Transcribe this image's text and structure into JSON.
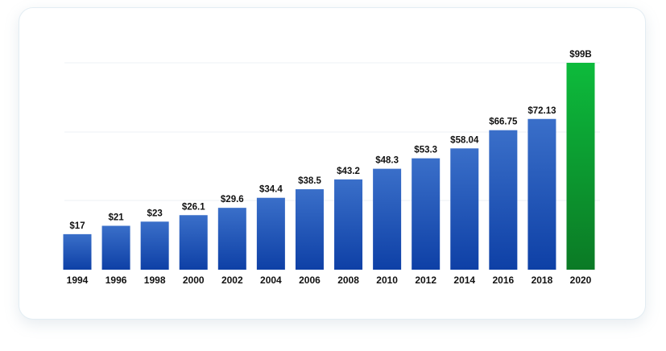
{
  "chart_data": {
    "type": "bar",
    "title": "",
    "xlabel": "",
    "ylabel": "",
    "ylim": [
      0,
      99
    ],
    "grid": true,
    "categories": [
      "1994",
      "1996",
      "1998",
      "2000",
      "2002",
      "2004",
      "2006",
      "2008",
      "2010",
      "2012",
      "2014",
      "2016",
      "2018",
      "2020"
    ],
    "values": [
      17,
      21,
      23,
      26.1,
      29.6,
      34.4,
      38.5,
      43.2,
      48.3,
      53.3,
      58.04,
      66.75,
      72.13,
      99
    ],
    "data_labels": [
      "$17",
      "$21",
      "$23",
      "$26.1",
      "$29.6",
      "$34.4",
      "$38.5",
      "$43.2",
      "$48.3",
      "$53.3",
      "$58.04",
      "$66.75",
      "$72.13",
      "$99B"
    ],
    "colors": {
      "bar_top": "#3a6fc9",
      "bar_bottom": "#0e40a6",
      "highlight_top": "#0dbb3c",
      "highlight_bottom": "#0b7a25",
      "grid": "#eef2f5"
    },
    "highlight_index": 13
  }
}
